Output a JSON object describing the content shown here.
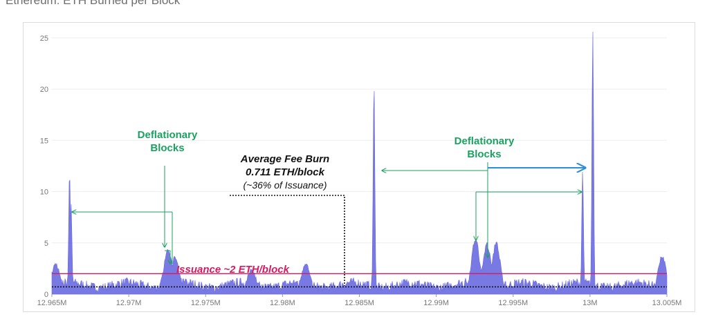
{
  "title": "Ethereum: ETH Burned per Block",
  "chart_data": {
    "type": "area",
    "title": "Ethereum: ETH Burned per Block",
    "xlabel": "",
    "ylabel": "",
    "xlim": [
      12965000,
      13005000
    ],
    "ylim": [
      0,
      26
    ],
    "x_ticks": [
      {
        "value": 12965000,
        "label": "12.965M"
      },
      {
        "value": 12970000,
        "label": "12.97M"
      },
      {
        "value": 12975000,
        "label": "12.975M"
      },
      {
        "value": 12980000,
        "label": "12.98M"
      },
      {
        "value": 12985000,
        "label": "12.985M"
      },
      {
        "value": 12990000,
        "label": "12.99M"
      },
      {
        "value": 12995000,
        "label": "12.995M"
      },
      {
        "value": 13000000,
        "label": "13M"
      },
      {
        "value": 13005000,
        "label": "13.005M"
      }
    ],
    "y_ticks": [
      0,
      5,
      10,
      15,
      20,
      25
    ],
    "grid": true,
    "series_color": "#6a6ae0",
    "baseline": 0.9,
    "peaks": [
      {
        "x": 12965250,
        "y": 2.7
      },
      {
        "x": 12966150,
        "y": 11.8
      },
      {
        "x": 12966250,
        "y": 8.6
      },
      {
        "x": 12972550,
        "y": 4.2
      },
      {
        "x": 12973000,
        "y": 3.3
      },
      {
        "x": 12978000,
        "y": 2.2
      },
      {
        "x": 12981500,
        "y": 2.8
      },
      {
        "x": 12985950,
        "y": 20.5
      },
      {
        "x": 12992550,
        "y": 5.1
      },
      {
        "x": 12993300,
        "y": 4.6
      },
      {
        "x": 12993900,
        "y": 4.7
      },
      {
        "x": 12999520,
        "y": 11.7
      },
      {
        "x": 13000180,
        "y": 25.5
      },
      {
        "x": 13004700,
        "y": 3.4
      }
    ],
    "reference_lines": [
      {
        "name": "Issuance",
        "y": 2.0,
        "color": "#d81b60",
        "style": "solid"
      },
      {
        "name": "Average Fee Burn",
        "y": 0.711,
        "color": "#111111",
        "style": "dotted"
      }
    ],
    "annotations": {
      "deflationary_left": {
        "line1": "Deflationary",
        "line2": "Blocks"
      },
      "deflationary_right": {
        "line1": "Deflationary",
        "line2": "Blocks"
      },
      "avg_burn": {
        "line1": "Average Fee Burn",
        "line2": "0.711 ETH/block",
        "line3": "(~36% of Issuance)"
      },
      "issuance": "Issuance ~2 ETH/block"
    }
  },
  "colors": {
    "area": "#6a6ae0",
    "issuance": "#d81b60",
    "annotation_green": "#1aa260",
    "highlight_blue": "#2b8fd8",
    "text": "#111111"
  }
}
